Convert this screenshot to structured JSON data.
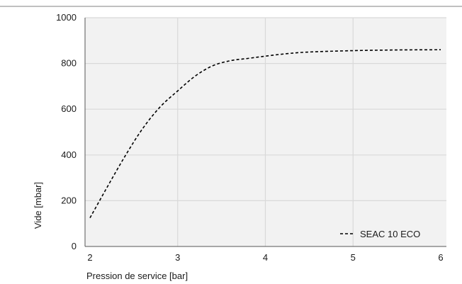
{
  "chart_data": {
    "type": "line",
    "xlabel": "Pression de service [bar]",
    "ylabel": "Vide [mbar]",
    "xlim": [
      2,
      6
    ],
    "ylim": [
      0,
      1000
    ],
    "xticks": [
      2,
      3,
      4,
      5,
      6
    ],
    "yticks": [
      0,
      200,
      400,
      600,
      800,
      1000
    ],
    "grid": true,
    "legend_position": "bottom-right",
    "series": [
      {
        "name": "SEAC 10 ECO",
        "line_style": "dashed",
        "color": "#000000",
        "x": [
          2.0,
          2.2,
          2.4,
          2.6,
          2.8,
          3.0,
          3.2,
          3.4,
          3.6,
          3.8,
          4.0,
          4.25,
          4.5,
          5.0,
          5.5,
          6.0
        ],
        "y": [
          125,
          262,
          395,
          515,
          610,
          680,
          745,
          790,
          812,
          822,
          832,
          843,
          850,
          856,
          859,
          860
        ]
      }
    ],
    "colors": {
      "plot_background": "#f2f2f2",
      "grid": "#d9d9d9",
      "axis": "#555555",
      "top_rule": "#808080"
    }
  }
}
